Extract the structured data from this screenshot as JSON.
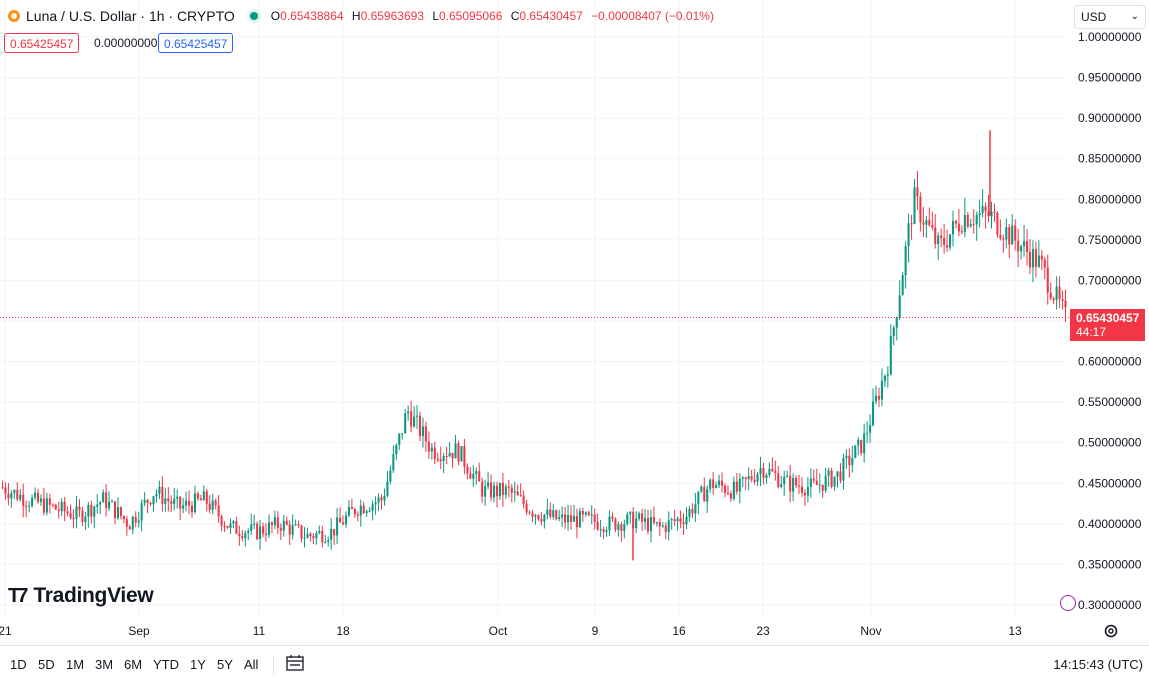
{
  "header": {
    "title": "Luna / U.S. Dollar · 1h · CRYPTO",
    "o_label": "O",
    "o_value": "0.65438864",
    "h_label": "H",
    "h_value": "0.65963693",
    "l_label": "L",
    "l_value": "0.65095066",
    "c_label": "C",
    "c_value": "0.65430457",
    "change": "−0.00008407 (−0.01%)"
  },
  "quotes": {
    "sell": "0.65425457",
    "spread": "0.00000000",
    "buy": "0.65425457"
  },
  "currency_select": {
    "value": "USD"
  },
  "last_price": {
    "price": "0.65430457",
    "countdown": "44:17"
  },
  "brand": {
    "name": "TradingView"
  },
  "bottom_bar": {
    "ranges": [
      "1D",
      "5D",
      "1M",
      "3M",
      "6M",
      "YTD",
      "1Y",
      "5Y",
      "All"
    ],
    "clock": "14:15:43 (UTC)"
  },
  "colors": {
    "up": "#089981",
    "down": "#f23645",
    "grid": "#f0f3fa",
    "text": "#131722",
    "accent": "#2962ff"
  },
  "icons": {
    "settings": "gear-icon",
    "calendar": "calendar-range-icon",
    "logo": "luna-logo-icon"
  },
  "chart_data": {
    "type": "line",
    "description_of_marks": "hourly candlesticks",
    "title": "",
    "xlabel": "",
    "ylabel": "",
    "x_tick_labels": [
      "21",
      "Sep",
      "11",
      "18",
      "Oct",
      "9",
      "16",
      "23",
      "Nov",
      "13"
    ],
    "y_tick_labels": [
      "1.00000000",
      "0.95000000",
      "0.90000000",
      "0.85000000",
      "0.80000000",
      "0.75000000",
      "0.70000000",
      "0.65000000",
      "0.60000000",
      "0.55000000",
      "0.50000000",
      "0.45000000",
      "0.40000000",
      "0.35000000",
      "0.30000000"
    ],
    "ylim": [
      0.28,
      1.0
    ],
    "x": [
      "Aug 21",
      "Aug 24",
      "Aug 27",
      "Aug 30",
      "Sep 1",
      "Sep 4",
      "Sep 5",
      "Sep 7",
      "Sep 9",
      "Sep 11",
      "Sep 14",
      "Sep 17",
      "Sep 19",
      "Sep 21",
      "Sep 24",
      "Sep 26",
      "Sep 28",
      "Sep 30",
      "Oct 1",
      "Oct 3",
      "Oct 5",
      "Oct 8",
      "Oct 10",
      "Oct 12",
      "Oct 15",
      "Oct 17",
      "Oct 19",
      "Oct 21",
      "Oct 23",
      "Oct 25",
      "Oct 28",
      "Oct 31",
      "Nov 3",
      "Nov 5",
      "Nov 7",
      "Nov 9",
      "Nov 10",
      "Nov 11",
      "Nov 12",
      "Nov 13",
      "Nov 14",
      "Nov 15",
      "Nov 16"
    ],
    "series": [
      {
        "values": [
          0.445,
          0.43,
          0.42,
          0.41,
          0.43,
          0.4,
          0.44,
          0.42,
          0.43,
          0.395,
          0.39,
          0.4,
          0.385,
          0.39,
          0.42,
          0.43,
          0.54,
          0.49,
          0.49,
          0.44,
          0.44,
          0.415,
          0.405,
          0.405,
          0.4,
          0.405,
          0.395,
          0.41,
          0.45,
          0.44,
          0.47,
          0.45,
          0.445,
          0.46,
          0.5,
          0.6,
          0.8,
          0.74,
          0.78,
          0.78,
          0.75,
          0.72,
          0.654
        ]
      }
    ],
    "notable_wicks": {
      "high": 0.885,
      "low": 0.355
    },
    "last_value": 0.65430457,
    "grid": true,
    "legend": "none"
  }
}
